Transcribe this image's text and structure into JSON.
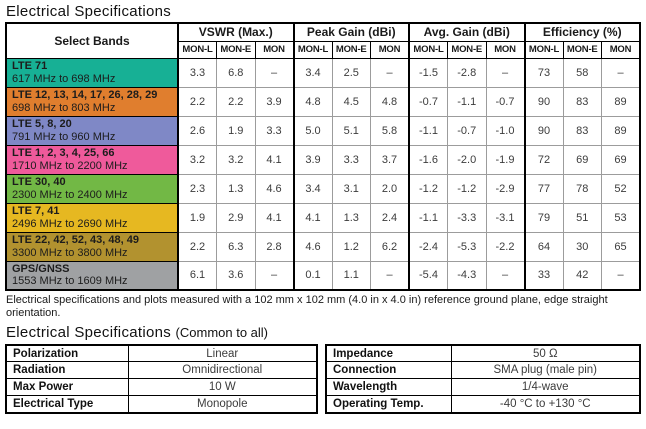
{
  "page": {
    "title": "Electrical Specifications",
    "footnote": "Electrical specifications and plots measured with a 102 mm x 102 mm (4.0 in x 4.0 in) reference ground plane, edge straight orientation.",
    "common_title": "Electrical Specifications",
    "common_subtitle": "(Common to all)"
  },
  "spec_table": {
    "band_header": "Select Bands",
    "groups": [
      {
        "label": "VSWR (Max.)"
      },
      {
        "label": "Peak Gain (dBi)"
      },
      {
        "label": "Avg. Gain (dBi)"
      },
      {
        "label": "Efficiency (%)"
      }
    ],
    "subheaders": [
      "MON-L",
      "MON-E",
      "MON"
    ],
    "rows": [
      {
        "band": "LTE 71",
        "freq": "617 MHz to 698 MHz",
        "color": "#17b095",
        "values": [
          "3.3",
          "6.8",
          "–",
          "3.4",
          "2.5",
          "–",
          "-1.5",
          "-2.8",
          "–",
          "73",
          "58",
          "–"
        ]
      },
      {
        "band": "LTE 12, 13, 14, 17, 26, 28, 29",
        "freq": "698 MHz to 803 MHz",
        "color": "#e07e2e",
        "values": [
          "2.2",
          "2.2",
          "3.9",
          "4.8",
          "4.5",
          "4.8",
          "-0.7",
          "-1.1",
          "-0.7",
          "90",
          "83",
          "89"
        ]
      },
      {
        "band": "LTE 5, 8, 20",
        "freq": "791 MHz to 960 MHz",
        "color": "#7f88c6",
        "values": [
          "2.6",
          "1.9",
          "3.3",
          "5.0",
          "5.1",
          "5.8",
          "-1.1",
          "-0.7",
          "-1.0",
          "90",
          "83",
          "89"
        ]
      },
      {
        "band": "LTE 1, 2, 3, 4, 25, 66",
        "freq": "1710 MHz to 2200 MHz",
        "color": "#ef5a9b",
        "values": [
          "3.2",
          "3.2",
          "4.1",
          "3.9",
          "3.3",
          "3.7",
          "-1.6",
          "-2.0",
          "-1.9",
          "72",
          "69",
          "69"
        ]
      },
      {
        "band": "LTE 30, 40",
        "freq": "2300 MHz to 2400 MHz",
        "color": "#72b845",
        "values": [
          "2.3",
          "1.3",
          "4.6",
          "3.4",
          "3.1",
          "2.0",
          "-1.2",
          "-1.2",
          "-2.9",
          "77",
          "78",
          "52"
        ]
      },
      {
        "band": "LTE 7, 41",
        "freq": "2496 MHz to 2690 MHz",
        "color": "#e6b821",
        "values": [
          "1.9",
          "2.9",
          "4.1",
          "4.1",
          "1.3",
          "2.4",
          "-1.1",
          "-3.3",
          "-3.1",
          "79",
          "51",
          "53"
        ]
      },
      {
        "band": "LTE 22, 42, 52, 43, 48, 49",
        "freq": "3300 MHz to 3800 MHz",
        "color": "#b2922f",
        "values": [
          "2.2",
          "6.3",
          "2.8",
          "4.6",
          "1.2",
          "6.2",
          "-2.4",
          "-5.3",
          "-2.2",
          "64",
          "30",
          "65"
        ]
      },
      {
        "band": "GPS/GNSS",
        "freq": "1553 MHz to 1609 MHz",
        "color": "#9fa1a3",
        "values": [
          "6.1",
          "3.6",
          "–",
          "0.1",
          "1.1",
          "–",
          "-5.4",
          "-4.3",
          "–",
          "33",
          "42",
          "–"
        ]
      }
    ]
  },
  "common_left": {
    "rows": [
      {
        "label": "Polarization",
        "value": "Linear"
      },
      {
        "label": "Radiation",
        "value": "Omnidirectional"
      },
      {
        "label": "Max Power",
        "value": "10 W"
      },
      {
        "label": "Electrical Type",
        "value": "Monopole"
      }
    ]
  },
  "common_right": {
    "rows": [
      {
        "label": "Impedance",
        "value": "50 Ω"
      },
      {
        "label": "Connection",
        "value": "SMA plug (male pin)"
      },
      {
        "label": "Wavelength",
        "value": "1/4-wave"
      },
      {
        "label": "Operating Temp.",
        "value": "-40 °C to +130 °C"
      }
    ]
  }
}
